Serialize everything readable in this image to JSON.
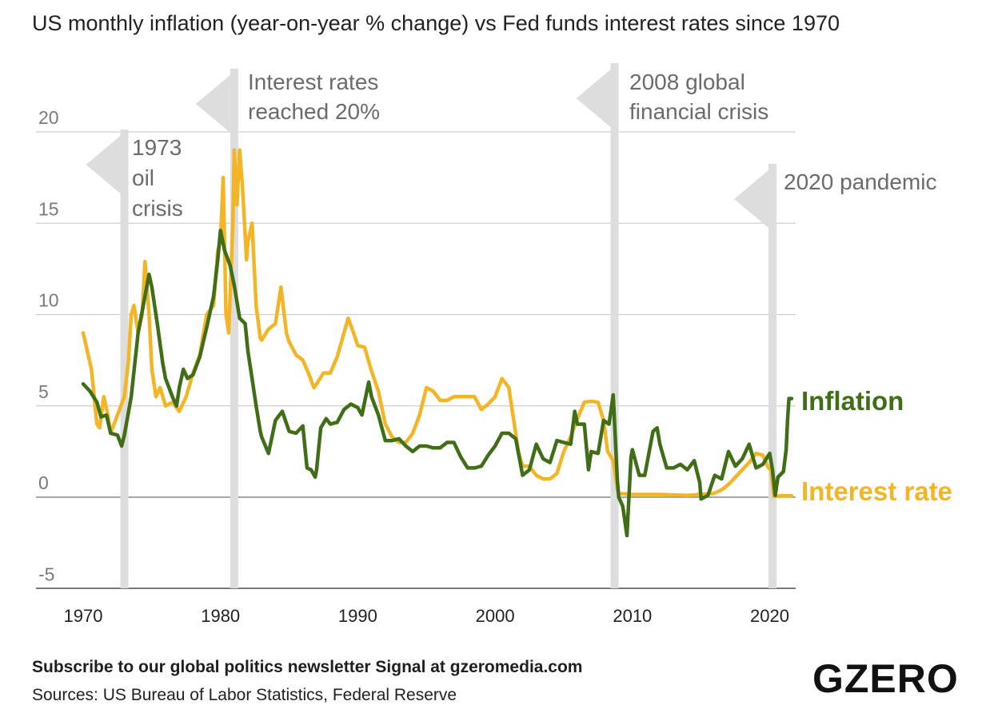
{
  "footer": {
    "subscribe": "Subscribe to our global politics newsletter Signal at gzeromedia.com",
    "sources": "Sources: US Bureau of Labor Statistics, Federal Reserve"
  },
  "brand": {
    "logo_text": "GZERO"
  },
  "colors": {
    "inflation": "#3f6e17",
    "interest_rate": "#f3b526",
    "annotation": "#dddddd",
    "annotation_text": "#6b6b6b",
    "grid": "#cfcfcf",
    "axis": "#888888"
  },
  "chart_data": {
    "type": "line",
    "title": "US monthly inflation (year-on-year % change) vs Fed funds interest rates since 1970",
    "xlabel": "",
    "ylabel": "",
    "xlim": [
      1970,
      2021.6
    ],
    "ylim": [
      -5,
      21
    ],
    "x_ticks": [
      1970,
      1980,
      1990,
      2000,
      2010,
      2020
    ],
    "y_ticks": [
      -5,
      0,
      5,
      10,
      15,
      20
    ],
    "grid": true,
    "annotations": [
      {
        "x": 1973.0,
        "lines": [
          "1973",
          "oil",
          "crisis"
        ]
      },
      {
        "x": 1981.0,
        "lines": [
          "Interest rates",
          "reached 20%"
        ]
      },
      {
        "x": 2008.7,
        "lines": [
          "2008 global",
          "financial crisis"
        ]
      },
      {
        "x": 2020.2,
        "lines": [
          "2020 pandemic"
        ]
      }
    ],
    "series": [
      {
        "name": "Interest rate",
        "color": "#f3b526",
        "points": [
          [
            1970,
            9
          ],
          [
            1970.3,
            8
          ],
          [
            1970.6,
            7
          ],
          [
            1971,
            4
          ],
          [
            1971.2,
            3.8
          ],
          [
            1971.5,
            5.5
          ],
          [
            1971.8,
            4.5
          ],
          [
            1972,
            3.5
          ],
          [
            1972.5,
            4.5
          ],
          [
            1973,
            5.5
          ],
          [
            1973.3,
            7.5
          ],
          [
            1973.5,
            10
          ],
          [
            1973.7,
            10.5
          ],
          [
            1974,
            9
          ],
          [
            1974.3,
            10
          ],
          [
            1974.5,
            12.9
          ],
          [
            1974.8,
            10
          ],
          [
            1975,
            7
          ],
          [
            1975.3,
            5.5
          ],
          [
            1975.6,
            6
          ],
          [
            1976,
            5
          ],
          [
            1976.5,
            5.2
          ],
          [
            1977,
            4.7
          ],
          [
            1977.5,
            5.5
          ],
          [
            1978,
            6.8
          ],
          [
            1978.5,
            7.8
          ],
          [
            1979,
            10
          ],
          [
            1979.5,
            10.5
          ],
          [
            1979.8,
            13.5
          ],
          [
            1980,
            14
          ],
          [
            1980.2,
            17.5
          ],
          [
            1980.4,
            10
          ],
          [
            1980.6,
            9
          ],
          [
            1980.9,
            15
          ],
          [
            1981,
            19
          ],
          [
            1981.2,
            16
          ],
          [
            1981.4,
            19
          ],
          [
            1981.6,
            17
          ],
          [
            1981.9,
            13
          ],
          [
            1982,
            14
          ],
          [
            1982.3,
            15
          ],
          [
            1982.6,
            10.5
          ],
          [
            1982.9,
            8.7
          ],
          [
            1983,
            8.6
          ],
          [
            1983.5,
            9.2
          ],
          [
            1984,
            9.5
          ],
          [
            1984.4,
            11.5
          ],
          [
            1984.8,
            9
          ],
          [
            1985,
            8.5
          ],
          [
            1985.5,
            7.8
          ],
          [
            1986,
            7.5
          ],
          [
            1986.4,
            6.8
          ],
          [
            1986.8,
            6
          ],
          [
            1987,
            6.2
          ],
          [
            1987.5,
            6.8
          ],
          [
            1988,
            6.8
          ],
          [
            1988.5,
            7.7
          ],
          [
            1989,
            9
          ],
          [
            1989.3,
            9.8
          ],
          [
            1989.6,
            9.2
          ],
          [
            1990,
            8.3
          ],
          [
            1990.5,
            8.2
          ],
          [
            1991,
            6.9
          ],
          [
            1991.5,
            5.8
          ],
          [
            1992,
            4
          ],
          [
            1992.5,
            3.3
          ],
          [
            1993,
            3
          ],
          [
            1993.5,
            3
          ],
          [
            1994,
            3.5
          ],
          [
            1994.5,
            4.5
          ],
          [
            1995,
            6
          ],
          [
            1995.5,
            5.8
          ],
          [
            1996,
            5.3
          ],
          [
            1996.5,
            5.3
          ],
          [
            1997,
            5.5
          ],
          [
            1997.5,
            5.5
          ],
          [
            1998,
            5.5
          ],
          [
            1998.5,
            5.5
          ],
          [
            1999,
            4.8
          ],
          [
            1999.5,
            5.1
          ],
          [
            2000,
            5.5
          ],
          [
            2000.5,
            6.5
          ],
          [
            2001,
            6
          ],
          [
            2001.3,
            4.5
          ],
          [
            2001.7,
            2.5
          ],
          [
            2002,
            1.7
          ],
          [
            2002.5,
            1.7
          ],
          [
            2003,
            1.2
          ],
          [
            2003.5,
            1
          ],
          [
            2004,
            1
          ],
          [
            2004.5,
            1.3
          ],
          [
            2005,
            2.5
          ],
          [
            2005.5,
            3.3
          ],
          [
            2006,
            4.3
          ],
          [
            2006.5,
            5.2
          ],
          [
            2007,
            5.25
          ],
          [
            2007.5,
            5.2
          ],
          [
            2007.9,
            4.2
          ],
          [
            2008.2,
            2.5
          ],
          [
            2008.6,
            2
          ],
          [
            2008.9,
            0.5
          ],
          [
            2009,
            0.2
          ],
          [
            2010,
            0.15
          ],
          [
            2012,
            0.15
          ],
          [
            2014,
            0.1
          ],
          [
            2015.9,
            0.2
          ],
          [
            2016.5,
            0.4
          ],
          [
            2017,
            0.7
          ],
          [
            2017.5,
            1.1
          ],
          [
            2018,
            1.5
          ],
          [
            2018.5,
            1.9
          ],
          [
            2019,
            2.4
          ],
          [
            2019.5,
            2.3
          ],
          [
            2019.9,
            1.6
          ],
          [
            2020.1,
            1.5
          ],
          [
            2020.3,
            0.05
          ],
          [
            2021,
            0.08
          ],
          [
            2021.6,
            0.08
          ]
        ]
      },
      {
        "name": "Inflation",
        "color": "#3f6e17",
        "points": [
          [
            1970,
            6.2
          ],
          [
            1970.5,
            5.8
          ],
          [
            1971,
            5.2
          ],
          [
            1971.3,
            4.4
          ],
          [
            1971.7,
            4.5
          ],
          [
            1972,
            3.5
          ],
          [
            1972.5,
            3.4
          ],
          [
            1972.8,
            2.8
          ],
          [
            1973,
            3.4
          ],
          [
            1973.5,
            5.5
          ],
          [
            1974,
            9
          ],
          [
            1974.5,
            11
          ],
          [
            1974.8,
            12.2
          ],
          [
            1975,
            11.5
          ],
          [
            1975.4,
            9.5
          ],
          [
            1975.8,
            7.3
          ],
          [
            1976,
            6.5
          ],
          [
            1976.5,
            5.5
          ],
          [
            1976.8,
            5
          ],
          [
            1977,
            6
          ],
          [
            1977.3,
            7
          ],
          [
            1977.6,
            6.5
          ],
          [
            1978,
            6.7
          ],
          [
            1978.5,
            7.7
          ],
          [
            1979,
            9.3
          ],
          [
            1979.5,
            11
          ],
          [
            1979.8,
            13
          ],
          [
            1980,
            14.6
          ],
          [
            1980.3,
            13.5
          ],
          [
            1980.7,
            12.7
          ],
          [
            1981,
            11.6
          ],
          [
            1981.4,
            9.8
          ],
          [
            1981.8,
            9.5
          ],
          [
            1982,
            8
          ],
          [
            1982.3,
            6.5
          ],
          [
            1982.6,
            5
          ],
          [
            1982.9,
            3.6
          ],
          [
            1983,
            3.3
          ],
          [
            1983.5,
            2.4
          ],
          [
            1984,
            4.2
          ],
          [
            1984.5,
            4.7
          ],
          [
            1985,
            3.6
          ],
          [
            1985.5,
            3.5
          ],
          [
            1986,
            3.9
          ],
          [
            1986.3,
            1.6
          ],
          [
            1986.6,
            1.5
          ],
          [
            1986.9,
            1.1
          ],
          [
            1987,
            1.5
          ],
          [
            1987.3,
            3.8
          ],
          [
            1987.7,
            4.3
          ],
          [
            1988,
            4
          ],
          [
            1988.5,
            4.1
          ],
          [
            1989,
            4.8
          ],
          [
            1989.5,
            5.1
          ],
          [
            1990,
            4.9
          ],
          [
            1990.3,
            4.5
          ],
          [
            1990.8,
            6.3
          ],
          [
            1991,
            5.5
          ],
          [
            1991.5,
            4.5
          ],
          [
            1992,
            3.1
          ],
          [
            1992.5,
            3.1
          ],
          [
            1993,
            3.2
          ],
          [
            1993.5,
            2.8
          ],
          [
            1994,
            2.5
          ],
          [
            1994.5,
            2.8
          ],
          [
            1995,
            2.8
          ],
          [
            1995.5,
            2.7
          ],
          [
            1996,
            2.7
          ],
          [
            1996.5,
            3
          ],
          [
            1997,
            3
          ],
          [
            1997.5,
            2.2
          ],
          [
            1998,
            1.6
          ],
          [
            1998.5,
            1.6
          ],
          [
            1999,
            1.7
          ],
          [
            1999.5,
            2.3
          ],
          [
            2000,
            2.8
          ],
          [
            2000.5,
            3.5
          ],
          [
            2001,
            3.5
          ],
          [
            2001.5,
            3.2
          ],
          [
            2002,
            1.2
          ],
          [
            2002.5,
            1.5
          ],
          [
            2003,
            2.9
          ],
          [
            2003.5,
            2.1
          ],
          [
            2004,
            1.9
          ],
          [
            2004.5,
            3.1
          ],
          [
            2005,
            3
          ],
          [
            2005.5,
            2.9
          ],
          [
            2005.8,
            4.7
          ],
          [
            2006,
            4
          ],
          [
            2006.5,
            4
          ],
          [
            2006.8,
            1.5
          ],
          [
            2007,
            2.5
          ],
          [
            2007.5,
            2.4
          ],
          [
            2007.9,
            4.2
          ],
          [
            2008.3,
            4
          ],
          [
            2008.6,
            5.6
          ],
          [
            2008.9,
            1
          ],
          [
            2009,
            0
          ],
          [
            2009.3,
            -0.5
          ],
          [
            2009.6,
            -2.1
          ],
          [
            2009.9,
            2.2
          ],
          [
            2010,
            2.6
          ],
          [
            2010.5,
            1.2
          ],
          [
            2010.9,
            1.2
          ],
          [
            2011,
            1.6
          ],
          [
            2011.5,
            3.6
          ],
          [
            2011.8,
            3.8
          ],
          [
            2012,
            2.9
          ],
          [
            2012.5,
            1.6
          ],
          [
            2013,
            1.6
          ],
          [
            2013.5,
            1.8
          ],
          [
            2014,
            1.5
          ],
          [
            2014.5,
            2
          ],
          [
            2014.9,
            0.8
          ],
          [
            2015,
            -0.1
          ],
          [
            2015.5,
            0.1
          ],
          [
            2016,
            1.2
          ],
          [
            2016.5,
            1
          ],
          [
            2017,
            2.5
          ],
          [
            2017.5,
            1.7
          ],
          [
            2018,
            2.1
          ],
          [
            2018.5,
            2.9
          ],
          [
            2019,
            1.6
          ],
          [
            2019.5,
            1.8
          ],
          [
            2020,
            2.4
          ],
          [
            2020.2,
            1.5
          ],
          [
            2020.4,
            0.1
          ],
          [
            2020.6,
            1.1
          ],
          [
            2021,
            1.4
          ],
          [
            2021.2,
            2.6
          ],
          [
            2021.3,
            4.2
          ],
          [
            2021.4,
            5.4
          ],
          [
            2021.6,
            5.4
          ]
        ]
      }
    ]
  }
}
